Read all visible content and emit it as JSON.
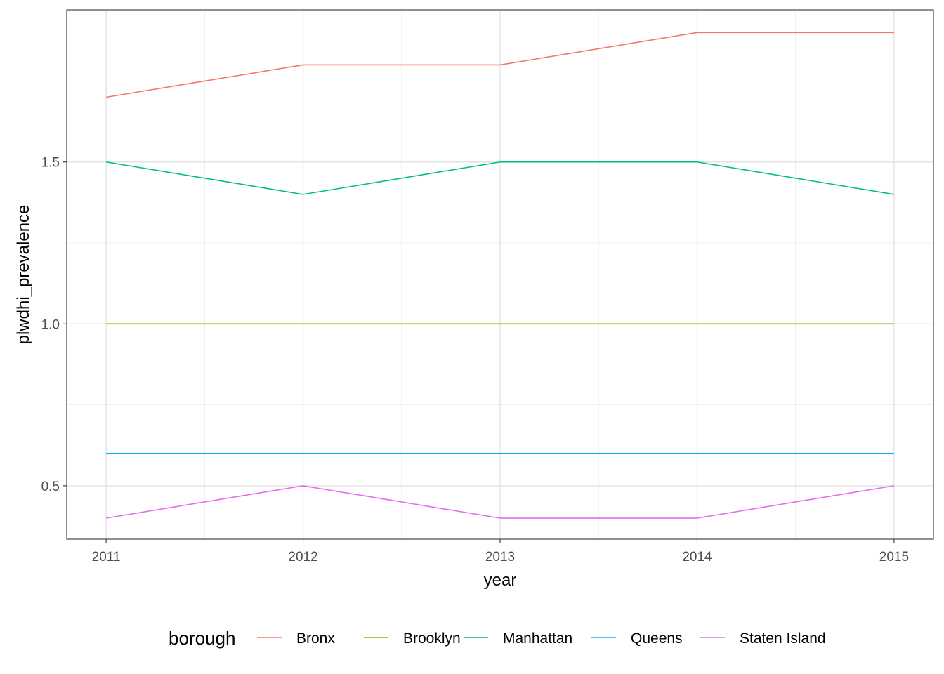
{
  "chart_data": {
    "type": "line",
    "title": "",
    "xlabel": "year",
    "ylabel": "plwdhi_prevalence",
    "x": [
      2011,
      2012,
      2013,
      2014,
      2015
    ],
    "x_tick_labels": [
      "2011",
      "2012",
      "2013",
      "2014",
      "2015"
    ],
    "y_ticks": [
      0.5,
      1.0,
      1.5
    ],
    "y_tick_labels": [
      "0.5",
      "1.0",
      "1.5"
    ],
    "xlim": [
      2010.8,
      2015.2
    ],
    "ylim": [
      0.335,
      1.97
    ],
    "grid": true,
    "legend": {
      "title": "borough",
      "position": "bottom"
    },
    "series": [
      {
        "name": "Bronx",
        "color": "#F8766D",
        "values": [
          1.7,
          1.8,
          1.8,
          1.9,
          1.9
        ]
      },
      {
        "name": "Brooklyn",
        "color": "#A3A500",
        "values": [
          1.0,
          1.0,
          1.0,
          1.0,
          1.0
        ]
      },
      {
        "name": "Manhattan",
        "color": "#00BF7D",
        "values": [
          1.5,
          1.4,
          1.5,
          1.5,
          1.4
        ]
      },
      {
        "name": "Queens",
        "color": "#00B0F6",
        "values": [
          0.6,
          0.6,
          0.6,
          0.6,
          0.6
        ]
      },
      {
        "name": "Staten Island",
        "color": "#E76BF3",
        "values": [
          0.4,
          0.5,
          0.4,
          0.4,
          0.5
        ]
      }
    ]
  }
}
